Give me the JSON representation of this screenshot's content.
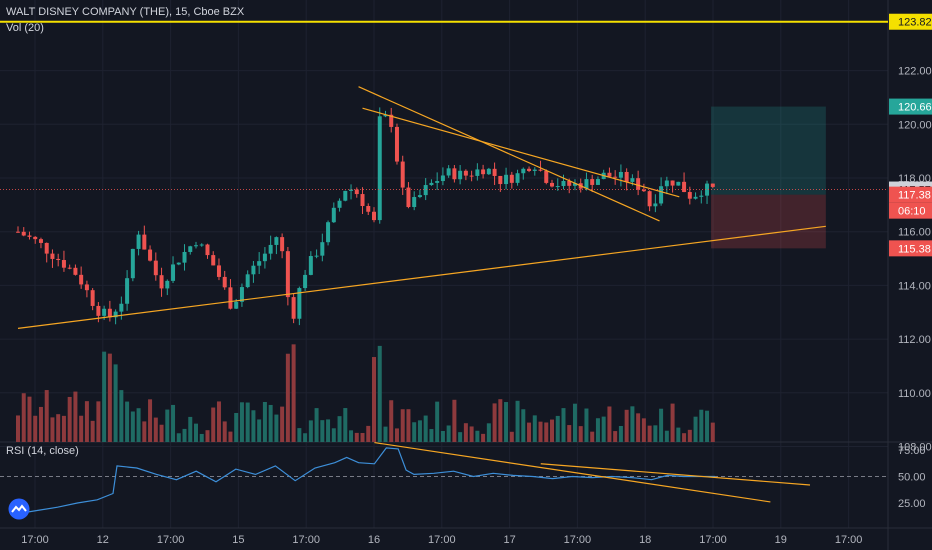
{
  "header": {
    "symbol_title": "WALT DISNEY COMPANY (THE), 15, Cboe BZX",
    "volume_legend": "Vol (20)",
    "rsi_legend": "RSI (14, close)"
  },
  "colors": {
    "background": "#131722",
    "grid": "#1e2230",
    "up": "#26a69a",
    "down": "#ef5350",
    "up_volume": "#1f6b64",
    "down_volume": "#8e3a3d",
    "trendline": "#f6a623",
    "resistance": "#f5e000",
    "rsi_line": "#3d8fd9",
    "axis_text": "#b2b5be",
    "current_price_label": "#cfd2d9"
  },
  "chart_data": [
    {
      "type": "candlestick",
      "panel": "price",
      "title": "WALT DISNEY COMPANY (THE), 15, Cboe BZX",
      "ylim": [
        107.8,
        124.5
      ],
      "y_ticks": [
        108.0,
        110.0,
        112.0,
        114.0,
        116.0,
        118.0,
        120.0,
        122.0
      ],
      "x_ticks": [
        "17:00",
        "12",
        "17:00",
        "15",
        "17:00",
        "16",
        "17:00",
        "17",
        "17:00",
        "18",
        "17:00",
        "19",
        "17:00"
      ],
      "price_labels": [
        {
          "value": "123.82",
          "role": "horizontal resistance line"
        },
        {
          "value": "120.66",
          "role": "position target"
        },
        {
          "value": "117.57",
          "role": "last price"
        },
        {
          "value": "117.38",
          "role": "entry"
        },
        {
          "value": "06:10",
          "role": "countdown"
        },
        {
          "value": "115.38",
          "role": "stop"
        }
      ],
      "horizontal_line": 123.82,
      "position": {
        "entry": 117.38,
        "target": 120.66,
        "stop": 115.38,
        "start_session": 17.5,
        "end_session": 20.4
      },
      "trendlines": [
        {
          "from": {
            "session": 0,
            "price": 112.4
          },
          "to": {
            "session": 20.4,
            "price": 116.2
          }
        },
        {
          "from": {
            "session": 8.6,
            "price": 121.4
          },
          "to": {
            "session": 16.2,
            "price": 116.4
          }
        },
        {
          "from": {
            "session": 8.7,
            "price": 120.6
          },
          "to": {
            "session": 16.7,
            "price": 117.3
          }
        }
      ],
      "series": [
        {
          "name": "price",
          "points": [
            [
              0.0,
              116.0
            ],
            [
              0.5,
              115.6
            ],
            [
              1.0,
              115.0
            ],
            [
              1.5,
              114.4
            ],
            [
              2.0,
              113.1
            ],
            [
              2.3,
              112.8
            ],
            [
              2.7,
              113.6
            ],
            [
              3.0,
              116.2
            ],
            [
              3.3,
              115.0
            ],
            [
              3.6,
              114.0
            ],
            [
              4.0,
              114.9
            ],
            [
              4.5,
              115.7
            ],
            [
              5.0,
              114.6
            ],
            [
              5.4,
              113.2
            ],
            [
              5.8,
              114.4
            ],
            [
              6.3,
              115.3
            ],
            [
              6.6,
              116.0
            ],
            [
              6.9,
              112.6
            ],
            [
              7.2,
              114.4
            ],
            [
              7.6,
              115.4
            ],
            [
              8.0,
              116.8
            ],
            [
              8.3,
              117.7
            ],
            [
              8.6,
              117.4
            ],
            [
              9.0,
              116.3
            ],
            [
              9.1,
              120.1
            ],
            [
              9.4,
              120.3
            ],
            [
              9.7,
              117.5
            ],
            [
              9.9,
              116.9
            ],
            [
              10.3,
              117.6
            ],
            [
              10.8,
              118.2
            ],
            [
              11.3,
              118.1
            ],
            [
              11.8,
              118.4
            ],
            [
              12.2,
              117.9
            ],
            [
              12.6,
              118.1
            ],
            [
              13.0,
              118.6
            ],
            [
              13.4,
              117.9
            ],
            [
              13.8,
              117.7
            ],
            [
              14.3,
              117.8
            ],
            [
              14.8,
              118.1
            ],
            [
              15.3,
              118.0
            ],
            [
              15.8,
              117.6
            ],
            [
              16.0,
              116.8
            ],
            [
              16.2,
              117.8
            ],
            [
              16.6,
              117.9
            ],
            [
              17.0,
              117.3
            ],
            [
              17.3,
              117.6
            ],
            [
              17.6,
              117.57
            ]
          ]
        }
      ]
    },
    {
      "type": "bar",
      "panel": "volume",
      "title": "Vol (20)",
      "note": "volume bars drawn at the bottom of the price panel, colored by candle direction"
    },
    {
      "type": "line",
      "panel": "rsi",
      "title": "RSI (14, close)",
      "ylim": [
        12,
        84
      ],
      "y_ticks": [
        25.0,
        50.0,
        75.0
      ],
      "levels": [
        50
      ],
      "series": [
        {
          "name": "RSI",
          "values": [
            [
              0.0,
              15
            ],
            [
              0.5,
              18
            ],
            [
              1.0,
              21
            ],
            [
              1.5,
              25
            ],
            [
              2.0,
              28
            ],
            [
              2.4,
              34
            ],
            [
              2.5,
              60
            ],
            [
              3.0,
              58
            ],
            [
              3.5,
              52
            ],
            [
              4.0,
              47
            ],
            [
              4.5,
              55
            ],
            [
              5.0,
              45
            ],
            [
              5.5,
              57
            ],
            [
              6.0,
              52
            ],
            [
              6.5,
              60
            ],
            [
              7.0,
              46
            ],
            [
              7.5,
              58
            ],
            [
              8.0,
              63
            ],
            [
              8.3,
              68
            ],
            [
              8.6,
              63
            ],
            [
              9.0,
              62
            ],
            [
              9.3,
              77
            ],
            [
              9.6,
              76
            ],
            [
              9.8,
              56
            ],
            [
              10.0,
              52
            ],
            [
              10.5,
              53
            ],
            [
              11.0,
              55
            ],
            [
              11.5,
              50
            ],
            [
              12.0,
              53
            ],
            [
              12.5,
              51
            ],
            [
              13.0,
              50
            ],
            [
              13.5,
              48
            ],
            [
              14.0,
              50
            ],
            [
              14.5,
              49
            ],
            [
              15.0,
              50
            ],
            [
              15.5,
              49
            ],
            [
              16.0,
              47
            ],
            [
              16.4,
              51
            ],
            [
              16.8,
              50
            ],
            [
              17.2,
              50
            ],
            [
              17.6,
              50
            ]
          ]
        }
      ],
      "trendlines": [
        {
          "from": {
            "session": 9.0,
            "value": 82
          },
          "to": {
            "session": 19.0,
            "value": 26
          }
        },
        {
          "from": {
            "session": 13.2,
            "value": 62
          },
          "to": {
            "session": 20.0,
            "value": 42
          }
        }
      ]
    }
  ]
}
